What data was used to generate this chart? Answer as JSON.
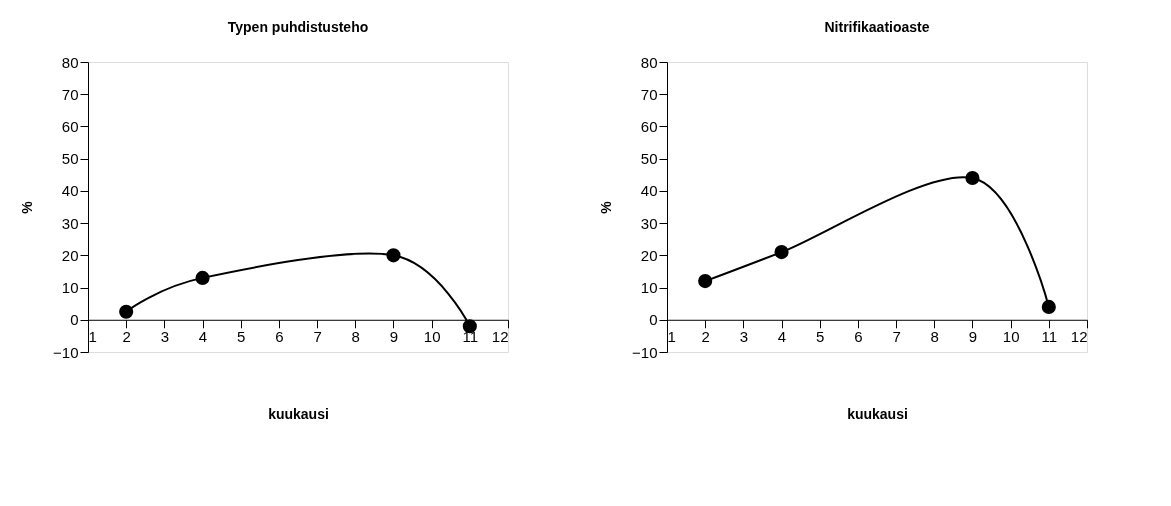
{
  "chart_data": [
    {
      "type": "line",
      "title": "Typen puhdistusteho",
      "xlabel": "kuukausi",
      "ylabel": "%",
      "xlim": [
        1,
        12
      ],
      "xticks": [
        1,
        2,
        3,
        4,
        5,
        6,
        7,
        8,
        9,
        10,
        11,
        12
      ],
      "ylim": [
        -10,
        80
      ],
      "yticks": [
        -10,
        0,
        10,
        20,
        30,
        40,
        50,
        60,
        70,
        80
      ],
      "marker": "circle",
      "series": [
        {
          "color": "#000000",
          "x": [
            2,
            4,
            9,
            11
          ],
          "values": [
            2.5,
            13,
            20,
            -2
          ]
        }
      ]
    },
    {
      "type": "line",
      "title": "Nitrifikaatioaste",
      "xlabel": "kuukausi",
      "ylabel": "%",
      "xlim": [
        1,
        12
      ],
      "xticks": [
        1,
        2,
        3,
        4,
        5,
        6,
        7,
        8,
        9,
        10,
        11,
        12
      ],
      "ylim": [
        -10,
        80
      ],
      "yticks": [
        -10,
        0,
        10,
        20,
        30,
        40,
        50,
        60,
        70,
        80
      ],
      "marker": "circle",
      "series": [
        {
          "color": "#000000",
          "x": [
            2,
            4,
            9,
            11
          ],
          "values": [
            12,
            21,
            44,
            4
          ]
        }
      ]
    }
  ]
}
